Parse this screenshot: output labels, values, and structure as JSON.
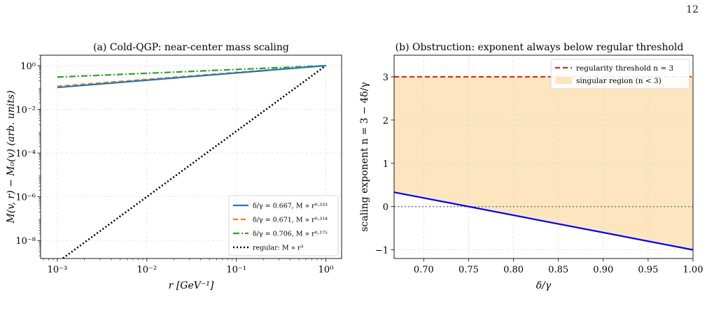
{
  "page_number": "12",
  "chart_data": [
    {
      "type": "line",
      "title": "(a) Cold-QGP: near-center mass scaling",
      "xlabel": "r  [GeV⁻¹]",
      "ylabel": "M(v, r) − M₀(v)  (arb. units)",
      "xscale": "log",
      "yscale": "log",
      "xlim": [
        0.00065,
        1.5
      ],
      "ylim": [
        1.5e-09,
        3
      ],
      "xticks": [
        0.001,
        0.01,
        0.1,
        1
      ],
      "xtick_labels": [
        "10⁻³",
        "10⁻²",
        "10⁻¹",
        "10⁰"
      ],
      "yticks": [
        1e-08,
        1e-06,
        0.0001,
        0.01,
        1
      ],
      "ytick_labels": [
        "10⁻⁸",
        "10⁻⁶",
        "10⁻⁴",
        "10⁻²",
        "10⁰"
      ],
      "grid": true,
      "legend_position": "lower-right",
      "series": [
        {
          "name": "δ/γ = 0.667, M ∝ r⁰·³³³",
          "color": "#1f77b4",
          "dash": "solid",
          "width": 2.2,
          "x": [
            0.001,
            1
          ],
          "y": [
            0.1,
            1
          ]
        },
        {
          "name": "δ/γ = 0.671, M ∝ r⁰·³¹⁴",
          "color": "#ff7f0e",
          "dash": "dashed",
          "width": 2.2,
          "x": [
            0.001,
            1
          ],
          "y": [
            0.114,
            1
          ]
        },
        {
          "name": "δ/γ = 0.706, M ∝ r⁰·¹⁷⁵",
          "color": "#2ca02c",
          "dash": "dashdot",
          "width": 2.2,
          "x": [
            0.001,
            1
          ],
          "y": [
            0.298,
            1
          ]
        },
        {
          "name": "regular: M ∝ r³",
          "color": "#000000",
          "dash": "dotted",
          "width": 2.6,
          "x": [
            0.001,
            1
          ],
          "y": [
            1e-09,
            1
          ]
        }
      ]
    },
    {
      "type": "line",
      "title": "(b) Obstruction: exponent always below regular threshold",
      "xlabel": "δ/γ",
      "ylabel": "scaling exponent n = 3 − 4δ/γ",
      "xlim": [
        0.667,
        1.0
      ],
      "ylim": [
        -1.2,
        3.5
      ],
      "xticks": [
        0.7,
        0.75,
        0.8,
        0.85,
        0.9,
        0.95,
        1.0
      ],
      "xtick_labels": [
        "0.70",
        "0.75",
        "0.80",
        "0.85",
        "0.90",
        "0.95",
        "1.00"
      ],
      "yticks": [
        -1,
        0,
        1,
        2,
        3
      ],
      "ytick_labels": [
        "−1",
        "0",
        "1",
        "2",
        "3"
      ],
      "grid": true,
      "legend_position": "top-right",
      "threshold": {
        "name": "regularity threshold n = 3",
        "y": 3,
        "color": "#d62728"
      },
      "region": {
        "name": "singular region (n < 3)",
        "color": "#fde6bf"
      },
      "zero_line": {
        "y": 0,
        "color": "#808080"
      },
      "series": [
        {
          "name": "n = 3 − 4δ/γ",
          "color": "#0000ee",
          "x": [
            0.667,
            1.0
          ],
          "y": [
            0.332,
            -1.0
          ]
        }
      ]
    }
  ]
}
